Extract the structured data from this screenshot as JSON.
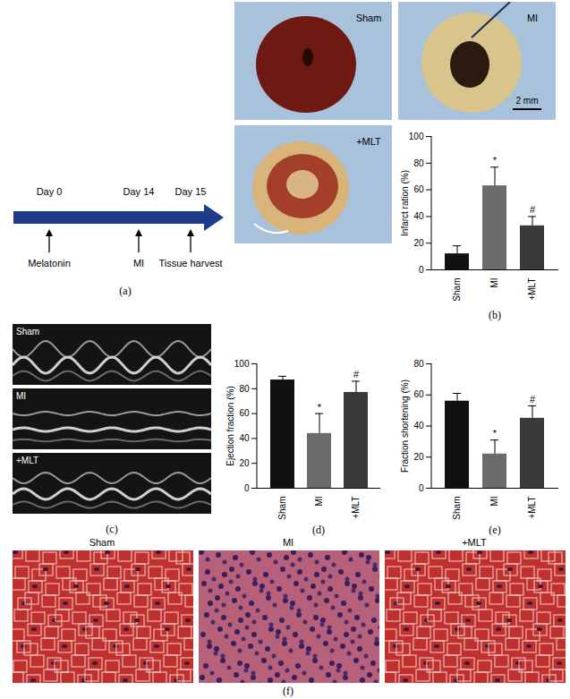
{
  "chart_data": [
    {
      "type": "bar",
      "panel_label": "(b)",
      "y_label": "Infarct ration (%)",
      "categories": [
        "Sham",
        "MI",
        "+MLT"
      ],
      "values": [
        12,
        63,
        33
      ],
      "errors": [
        6,
        14,
        7
      ],
      "significance": [
        null,
        "*",
        "#"
      ],
      "colors": [
        "#111111",
        "#6b6b6b",
        "#3a3a3a"
      ],
      "ylim": [
        0,
        100
      ],
      "yticks": [
        0,
        20,
        40,
        60,
        80,
        100
      ],
      "grid": false
    },
    {
      "type": "bar",
      "panel_label": "(d)",
      "y_label": "Ejection fraction (%)",
      "categories": [
        "Sham",
        "MI",
        "+MLT"
      ],
      "values": [
        87,
        44,
        77
      ],
      "errors": [
        3,
        16,
        9
      ],
      "significance": [
        null,
        "*",
        "#"
      ],
      "colors": [
        "#111111",
        "#6b6b6b",
        "#3a3a3a"
      ],
      "ylim": [
        0,
        100
      ],
      "yticks": [
        0,
        20,
        40,
        60,
        80,
        100
      ],
      "grid": false
    },
    {
      "type": "bar",
      "panel_label": "(e)",
      "y_label": "Fraction shortening (%)",
      "categories": [
        "Sham",
        "MI",
        "+MLT"
      ],
      "values": [
        56,
        22,
        45
      ],
      "errors": [
        5,
        9,
        8
      ],
      "significance": [
        null,
        "*",
        "#"
      ],
      "colors": [
        "#111111",
        "#6b6b6b",
        "#3a3a3a"
      ],
      "ylim": [
        0,
        80
      ],
      "yticks": [
        0,
        20,
        40,
        60,
        80
      ],
      "grid": false
    }
  ],
  "figure": {
    "timeline": {
      "panel_label": "(a)",
      "days": [
        "Day 0",
        "Day 14",
        "Day 15"
      ],
      "events": [
        "Melatonin",
        "MI",
        "Tissue harvest"
      ]
    },
    "photos": {
      "labels": [
        "Sham",
        "MI",
        "+MLT"
      ],
      "scale_bar": "2 mm"
    },
    "echo": {
      "panel_label": "(c)",
      "labels": [
        "Sham",
        "MI",
        "+MLT"
      ]
    },
    "histology": {
      "panel_label": "(f)",
      "labels": [
        "Sham",
        "MI",
        "+MLT"
      ]
    }
  }
}
